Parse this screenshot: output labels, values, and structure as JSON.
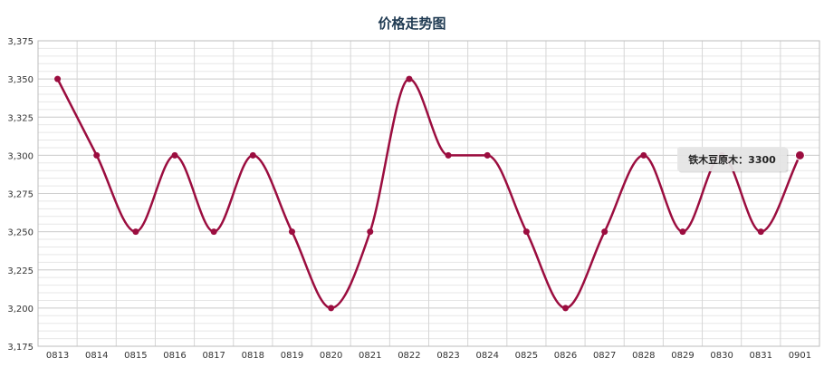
{
  "chart_data": {
    "type": "line",
    "title": "价格走势图",
    "xlabel": "",
    "ylabel": "",
    "categories": [
      "0813",
      "0814",
      "0815",
      "0816",
      "0817",
      "0818",
      "0819",
      "0820",
      "0821",
      "0822",
      "0823",
      "0824",
      "0825",
      "0826",
      "0827",
      "0828",
      "0829",
      "0830",
      "0831",
      "0901"
    ],
    "series": [
      {
        "name": "铁木豆原木",
        "values": [
          3350,
          3300,
          3250,
          3300,
          3250,
          3300,
          3250,
          3200,
          3250,
          3350,
          3300,
          3300,
          3250,
          3200,
          3250,
          3300,
          3250,
          3300,
          3250,
          3300
        ]
      }
    ],
    "ylim": [
      3175,
      3375
    ],
    "yticks": [
      3175,
      3200,
      3225,
      3250,
      3275,
      3300,
      3325,
      3350,
      3375
    ],
    "ytick_labels": [
      "3,175",
      "3,200",
      "3,225",
      "3,250",
      "3,275",
      "3,300",
      "3,325",
      "3,350",
      "3,375"
    ],
    "grid": true,
    "line_color": "#9b0d3f",
    "tooltip": {
      "text": "铁木豆原木：3300",
      "category_index": 19
    }
  }
}
